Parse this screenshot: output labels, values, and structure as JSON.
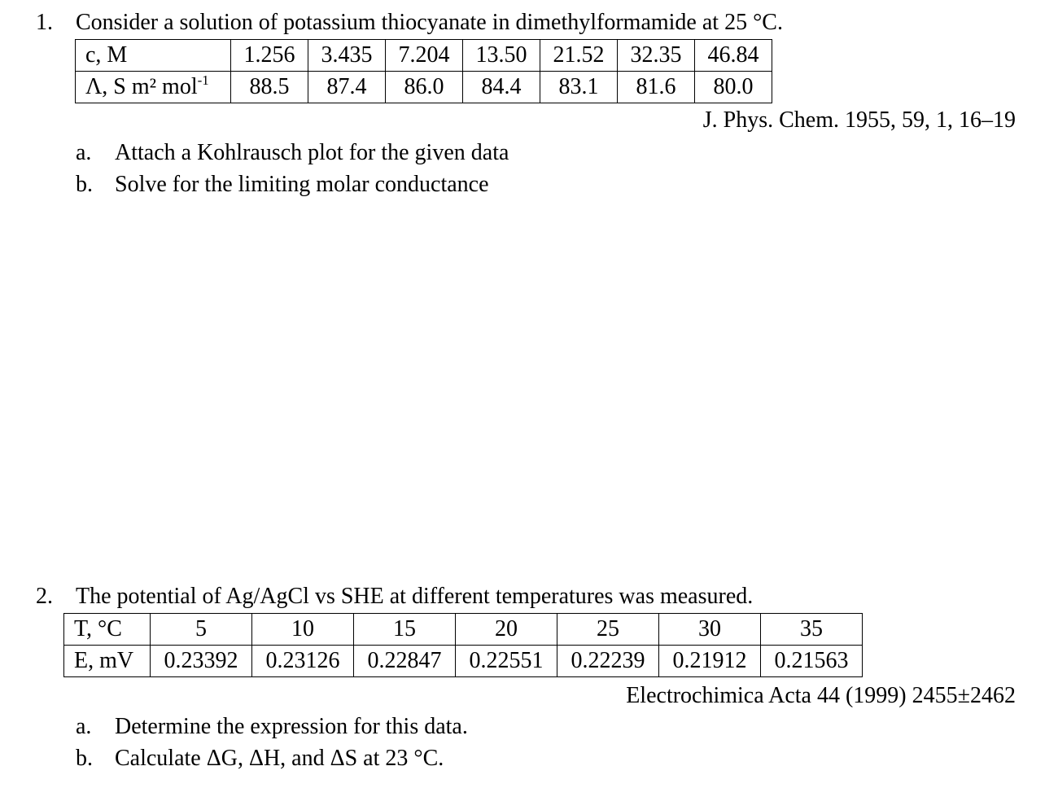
{
  "problem1": {
    "number": "1.",
    "statement": "Consider a solution of potassium thiocyanate in dimethylformamide at 25 °C.",
    "table": {
      "row1_header": "c, M",
      "row1_values": [
        "1.256",
        "3.435",
        "7.204",
        "13.50",
        "21.52",
        "32.35",
        "46.84"
      ],
      "row2_header_main": "Λ, S m² mol",
      "row2_header_sup": "-1",
      "row2_values": [
        "88.5",
        "87.4",
        "86.0",
        "84.4",
        "83.1",
        "81.6",
        "80.0"
      ]
    },
    "source": "J. Phys. Chem. 1955, 59, 1, 16–19",
    "subparts": [
      {
        "letter": "a.",
        "text": "Attach a Kohlrausch plot for the given data"
      },
      {
        "letter": "b.",
        "text": "Solve for the limiting molar conductance"
      }
    ]
  },
  "problem2": {
    "number": "2.",
    "statement": "The potential of Ag/AgCl vs SHE at different temperatures was measured.",
    "table": {
      "row1_header": "T, °C",
      "row1_values": [
        "5",
        "10",
        "15",
        "20",
        "25",
        "30",
        "35"
      ],
      "row2_header": "E, mV",
      "row2_values": [
        "0.23392",
        "0.23126",
        "0.22847",
        "0.22551",
        "0.22239",
        "0.21912",
        "0.21563"
      ]
    },
    "source": "Electrochimica Acta 44 (1999) 2455±2462",
    "subparts": [
      {
        "letter": "a.",
        "text": "Determine the expression for this data."
      },
      {
        "letter": "b.",
        "text": "Calculate ΔG, ΔH, and ΔS at 23 °C."
      }
    ]
  }
}
